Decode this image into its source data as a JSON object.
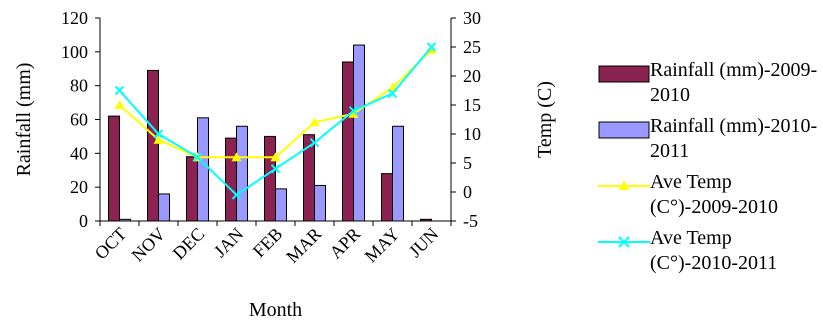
{
  "chart_data": {
    "type": "bar",
    "categories": [
      "OCT",
      "NOV",
      "DEC",
      "JAN",
      "FEB",
      "MAR",
      "APR",
      "MAY",
      "JUN"
    ],
    "series": [
      {
        "name": "Rainfall (mm)-2009-2010",
        "kind": "bar",
        "axis": "left",
        "color": "#8b2252",
        "values": [
          62,
          89,
          38,
          49,
          50,
          51,
          94,
          28,
          1
        ]
      },
      {
        "name": "Rainfall (mm)-2010-2011",
        "kind": "bar",
        "axis": "left",
        "color": "#9999ff",
        "values": [
          1,
          16,
          61,
          56,
          19,
          21,
          104,
          56,
          0
        ]
      },
      {
        "name": "Ave Temp (C°)-2009-2010",
        "kind": "line",
        "axis": "right",
        "color": "#ffff00",
        "marker": "triangle",
        "values": [
          15,
          9,
          6,
          6,
          6,
          12,
          13.5,
          18,
          24.5
        ]
      },
      {
        "name": "Ave Temp (C°)-2010-2011",
        "kind": "line",
        "axis": "right",
        "color": "#00ffff",
        "marker": "x",
        "values": [
          17.5,
          10,
          6,
          -0.5,
          4,
          8.5,
          14,
          17,
          25
        ]
      }
    ],
    "xlabel": "Month",
    "ylabel": "Rainfall (mm)",
    "y2label": "Temp (C)",
    "ylim": [
      0,
      120
    ],
    "y2lim": [
      -5,
      30
    ],
    "yticks": [
      "0",
      "20",
      "40",
      "60",
      "80",
      "100",
      "120"
    ],
    "y2ticks": [
      "-5",
      "0",
      "5",
      "10",
      "15",
      "20",
      "25",
      "30"
    ],
    "grid": false,
    "legend": "right"
  }
}
